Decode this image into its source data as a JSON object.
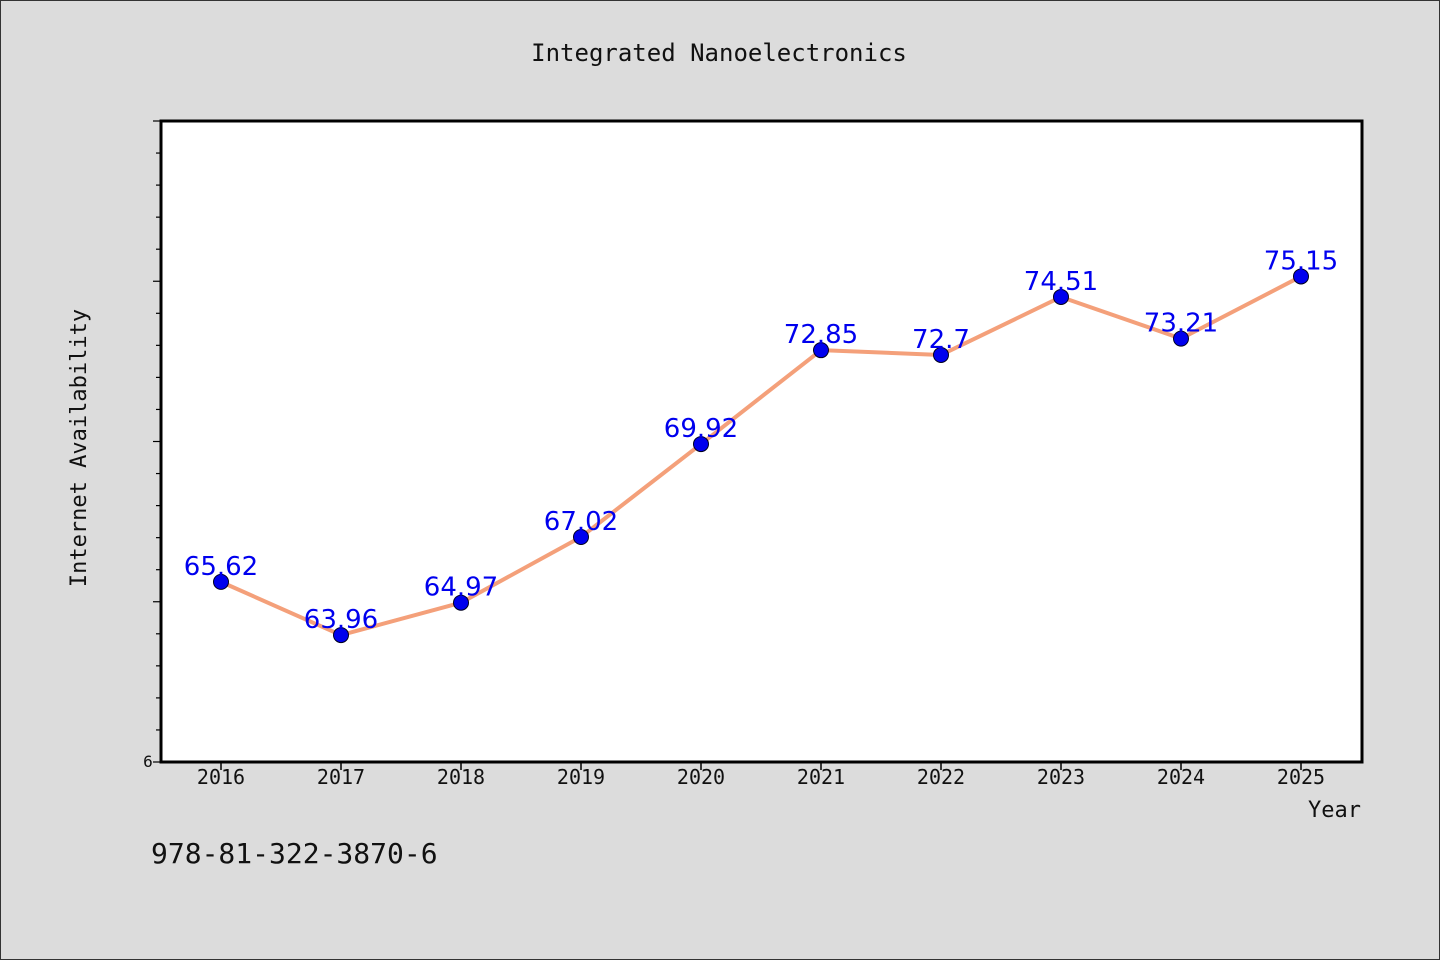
{
  "chart_data": {
    "type": "line",
    "title": "Integrated Nanoelectronics",
    "xlabel": "Year",
    "ylabel": "Internet Availability",
    "categories": [
      "2016",
      "2017",
      "2018",
      "2019",
      "2020",
      "2021",
      "2022",
      "2023",
      "2024",
      "2025"
    ],
    "series": [
      {
        "values": [
          65.62,
          63.96,
          64.97,
          67.02,
          69.92,
          72.85,
          72.7,
          74.51,
          73.21,
          75.15
        ]
      }
    ],
    "data_labels": [
      "65.62",
      "63.96",
      "64.97",
      "67.02",
      "69.92",
      "72.85",
      "72.7",
      "74.51",
      "73.21",
      "75.15"
    ],
    "ylim": [
      60,
      80
    ],
    "y_axis_bottom_label": "6",
    "grid": false,
    "legend": "none",
    "line_color": "#f4a07a",
    "marker_color": "#0000ee",
    "label_color": "#0000ee"
  },
  "footer": {
    "isbn": "978-81-322-3870-6"
  }
}
